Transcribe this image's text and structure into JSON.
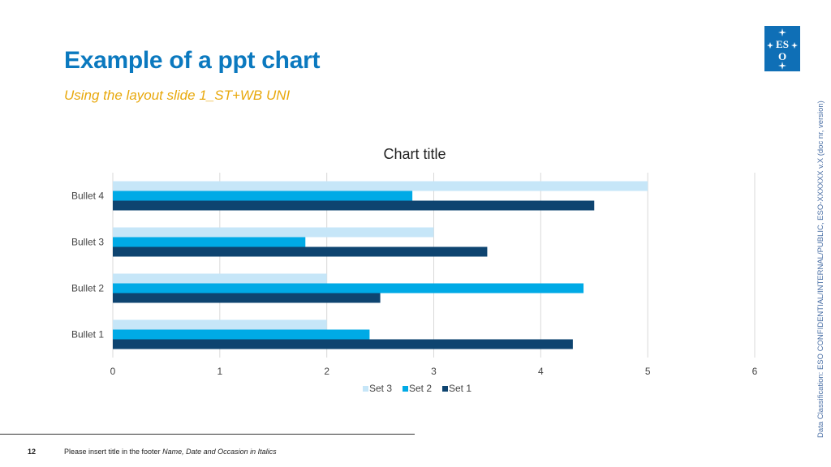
{
  "slide": {
    "title": "Example of a ppt chart",
    "subtitle": "Using the layout slide 1_ST+WB UNI",
    "classification": "Data Classification: ESO CONFIDENTIAL/INTERNAL/PUBLIC, ESO-XXXXXX v.X (doc nr, version)",
    "logo_text": "ESO"
  },
  "footer": {
    "page_number": "12",
    "text": "Please insert title in the footer",
    "italic_text": "Name, Date and Occasion in Italics"
  },
  "colors": {
    "title": "#0b79bf",
    "subtitle": "#e8a80c",
    "set1": "#0e4470",
    "set2": "#00aae6",
    "set3": "#c6e6f8",
    "grid": "#d9d9d9"
  },
  "chart_data": {
    "type": "bar",
    "orientation": "horizontal",
    "title": "Chart title",
    "categories": [
      "Bullet 1",
      "Bullet 2",
      "Bullet 3",
      "Bullet 4"
    ],
    "series": [
      {
        "name": "Set 1",
        "values": [
          4.3,
          2.5,
          3.5,
          4.5
        ]
      },
      {
        "name": "Set 2",
        "values": [
          2.4,
          4.4,
          1.8,
          2.8
        ]
      },
      {
        "name": "Set 3",
        "values": [
          2,
          2,
          3,
          5
        ]
      }
    ],
    "xlim": [
      0,
      6
    ],
    "xticks": [
      "0",
      "1",
      "2",
      "3",
      "4",
      "5",
      "6"
    ],
    "legend": [
      "Set 3",
      "Set 2",
      "Set 1"
    ],
    "legend_position": "bottom",
    "grid": true
  }
}
